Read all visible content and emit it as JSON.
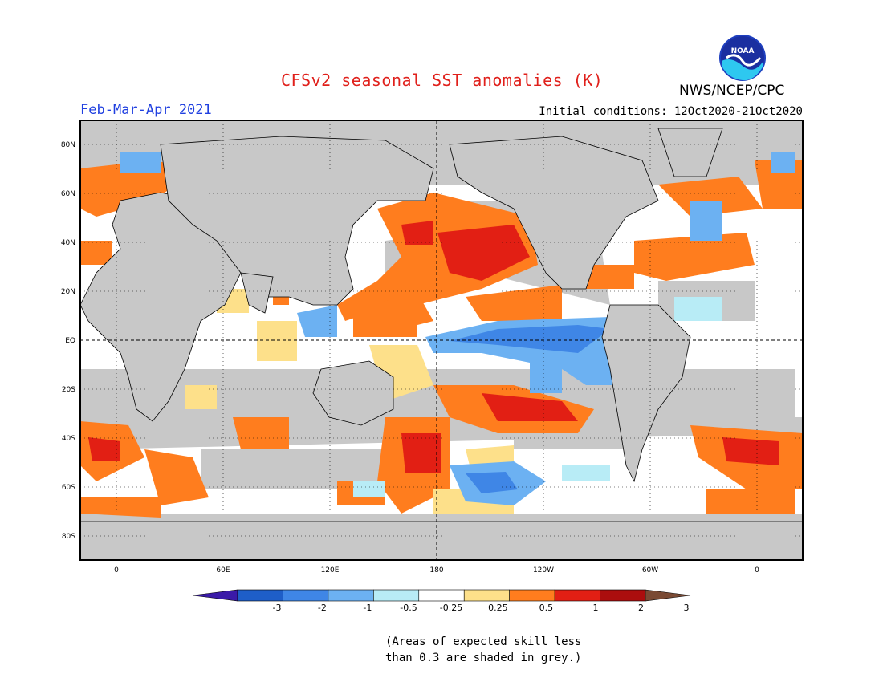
{
  "header": {
    "title": "CFSv2 seasonal SST anomalies (K)",
    "season": "Feb-Mar-Apr 2021",
    "initial_conditions": "Initial conditions: 12Oct2020-21Oct2020",
    "agency": "NWS/NCEP/CPC",
    "logo_text": "NOAA"
  },
  "axes": {
    "lat_labels": [
      "80N",
      "60N",
      "40N",
      "20N",
      "EQ",
      "20S",
      "40S",
      "60S",
      "80S"
    ],
    "lon_labels": [
      "0",
      "60E",
      "120E",
      "180",
      "120W",
      "60W",
      "0"
    ]
  },
  "colorbar": {
    "ticks": [
      "-3",
      "-2",
      "-1",
      "-0.5",
      "-0.25",
      "0.25",
      "0.5",
      "1",
      "2",
      "3"
    ],
    "colors": [
      "#3a1aa8",
      "#1e5ec8",
      "#3f86e6",
      "#6cb1f2",
      "#b8ecf6",
      "#ffffff",
      "#fde08a",
      "#ff7d1e",
      "#e21f14",
      "#ab0e0e",
      "#7a4a34"
    ]
  },
  "note": {
    "line1": "(Areas of expected skill less",
    "line2": "than 0.3 are shaded in grey.)"
  },
  "colors": {
    "title": "#e0201b",
    "season": "#2040e0",
    "no_skill": "#c8c8c8"
  }
}
